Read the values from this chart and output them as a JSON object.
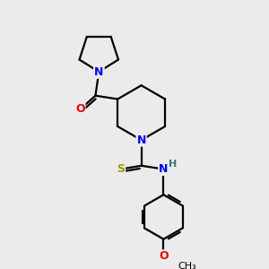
{
  "background_color": "#ebebeb",
  "atom_colors": {
    "N": "#0000ee",
    "O": "#ee0000",
    "S": "#999900",
    "C": "#000000",
    "H": "#337777"
  },
  "bond_color": "#000000",
  "bond_lw": 1.6,
  "figsize": [
    3.0,
    3.0
  ],
  "dpi": 100
}
